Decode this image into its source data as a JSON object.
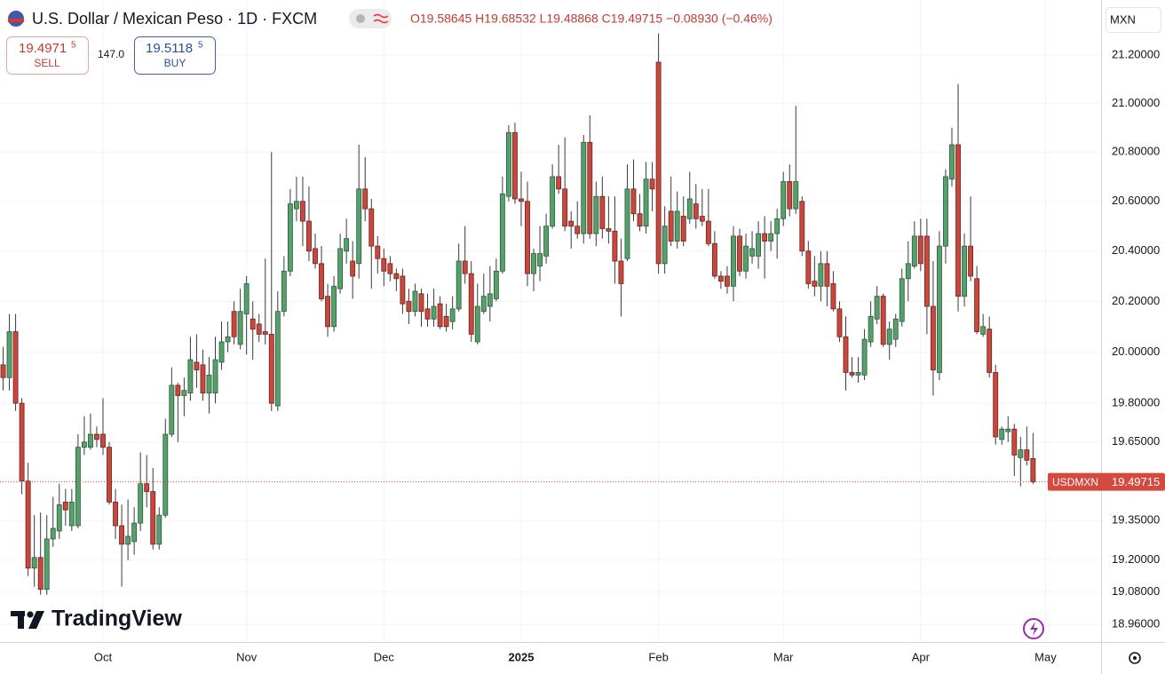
{
  "header": {
    "title": "U.S. Dollar / Mexican Peso · 1D · FXCM",
    "ohlc": "O19.58645 H19.68532 L19.48868 C19.49715 −0.08930 (−0.46%)",
    "sell": {
      "price": "19.4971",
      "pip": "5",
      "label": "SELL"
    },
    "spread": "147.0",
    "buy": {
      "price": "19.5118",
      "pip": "5",
      "label": "BUY"
    },
    "currency": "MXN",
    "logo": "TradingView"
  },
  "chart_data": {
    "type": "candlestick",
    "log_scale": true,
    "grid": true,
    "xlim": [
      -0.5,
      175.9
    ],
    "xticks": [
      {
        "value": 16,
        "label": "Oct"
      },
      {
        "value": 39,
        "label": "Nov"
      },
      {
        "value": 61,
        "label": "Dec"
      },
      {
        "value": 83,
        "label": "2025"
      },
      {
        "value": 105,
        "label": "Feb"
      },
      {
        "value": 125,
        "label": "Mar"
      },
      {
        "value": 147,
        "label": "Apr"
      },
      {
        "value": 167,
        "label": "May"
      }
    ],
    "ylim": [
      18.894,
      21.43
    ],
    "yticks": [
      {
        "value": 21.2,
        "label": "21.20000"
      },
      {
        "value": 21.0,
        "label": "21.00000"
      },
      {
        "value": 20.8,
        "label": "20.80000"
      },
      {
        "value": 20.6,
        "label": "20.60000"
      },
      {
        "value": 20.4,
        "label": "20.40000"
      },
      {
        "value": 20.2,
        "label": "20.20000"
      },
      {
        "value": 20.0,
        "label": "20.00000"
      },
      {
        "value": 19.8,
        "label": "19.80000"
      },
      {
        "value": 19.65,
        "label": "19.65000"
      },
      {
        "value": 19.35,
        "label": "19.35000"
      },
      {
        "value": 19.2,
        "label": "19.20000"
      },
      {
        "value": 19.08,
        "label": "19.08000"
      },
      {
        "value": 18.96,
        "label": "18.96000"
      }
    ],
    "up_color": "#56a06c",
    "down_color": "#c8483e",
    "last_price_color": "#d44a3f",
    "series": [
      {
        "name": "USDMXN",
        "open": [
          19.95,
          19.9,
          20.08,
          19.8,
          19.5,
          19.17,
          19.21,
          19.09,
          19.28,
          19.31,
          19.42,
          19.33,
          19.33,
          19.63,
          19.63,
          19.68,
          19.68,
          19.63,
          19.42,
          19.33,
          19.26,
          19.27,
          19.34,
          19.49,
          19.46,
          19.26,
          19.37,
          19.68,
          19.87,
          19.83,
          19.84,
          19.96,
          19.95,
          19.84,
          19.84,
          19.96,
          20.04,
          20.16,
          20.03,
          20.15,
          20.13,
          20.11,
          20.08,
          20.07,
          19.79,
          20.16,
          20.32,
          20.57,
          20.6,
          20.52,
          20.41,
          20.35,
          20.22,
          20.1,
          20.25,
          20.4,
          20.36,
          20.35,
          20.65,
          20.57,
          20.42,
          20.37,
          20.35,
          20.31,
          20.3,
          20.2,
          20.16,
          20.23,
          20.17,
          20.13,
          20.19,
          20.14,
          20.12,
          20.17,
          20.36,
          20.31,
          20.04,
          20.16,
          20.18,
          20.21,
          20.32,
          20.62,
          20.88,
          20.61,
          20.6,
          20.31,
          20.34,
          20.38,
          20.5,
          20.7,
          20.65,
          20.52,
          20.5,
          20.47,
          20.84,
          20.47,
          20.62,
          20.49,
          20.48,
          20.36,
          20.37,
          20.65,
          20.55,
          20.5,
          20.69,
          21.17,
          20.35,
          20.56,
          20.44,
          20.54,
          20.53,
          20.59,
          20.54,
          20.52,
          20.43,
          20.3,
          20.3,
          20.26,
          20.46,
          20.32,
          20.38,
          20.38,
          20.47,
          20.44,
          20.47,
          20.53,
          20.68,
          20.57,
          20.6,
          20.4,
          20.28,
          20.26,
          20.35,
          20.27,
          20.17,
          20.06,
          19.92,
          19.91,
          19.91,
          20.04,
          20.13,
          20.22,
          20.03,
          20.05,
          20.12,
          20.29,
          20.34,
          20.46,
          20.46,
          20.18,
          19.92,
          20.42,
          20.69,
          20.83,
          20.22,
          20.42,
          20.29,
          20.07,
          20.09,
          19.92,
          19.66,
          19.69,
          19.7,
          19.59,
          19.62,
          19.58645
        ],
        "high": [
          20.02,
          20.15,
          20.15,
          19.82,
          19.57,
          19.37,
          19.38,
          19.37,
          19.44,
          19.49,
          19.47,
          19.47,
          19.68,
          19.75,
          19.76,
          19.71,
          19.82,
          19.65,
          19.47,
          19.41,
          19.43,
          19.4,
          19.61,
          19.6,
          19.55,
          19.4,
          19.74,
          19.94,
          19.88,
          19.9,
          20.06,
          20.07,
          20.01,
          19.98,
          20.06,
          20.12,
          20.12,
          20.2,
          20.25,
          20.3,
          20.2,
          20.15,
          20.37,
          20.8,
          20.24,
          20.38,
          20.65,
          20.7,
          20.7,
          20.66,
          20.47,
          20.42,
          20.27,
          20.3,
          20.47,
          20.53,
          20.44,
          20.83,
          20.78,
          20.61,
          20.46,
          20.41,
          20.38,
          20.33,
          20.33,
          20.25,
          20.27,
          20.25,
          20.23,
          20.25,
          20.22,
          20.19,
          20.22,
          20.43,
          20.5,
          20.36,
          20.27,
          20.31,
          20.34,
          20.37,
          20.7,
          20.91,
          20.92,
          20.72,
          20.68,
          20.41,
          20.5,
          20.55,
          20.75,
          20.83,
          20.86,
          20.56,
          20.6,
          20.87,
          20.95,
          20.68,
          20.7,
          20.62,
          20.62,
          20.45,
          20.75,
          20.77,
          20.63,
          20.76,
          20.76,
          21.29,
          20.58,
          20.7,
          20.64,
          20.62,
          20.72,
          20.67,
          20.65,
          20.65,
          20.48,
          20.32,
          20.34,
          20.5,
          20.49,
          20.47,
          20.48,
          20.52,
          20.54,
          20.52,
          20.57,
          20.72,
          20.75,
          20.99,
          20.62,
          20.44,
          20.38,
          20.4,
          20.4,
          20.32,
          20.2,
          20.14,
          19.98,
          19.98,
          20.09,
          20.2,
          20.26,
          20.23,
          20.12,
          20.15,
          20.33,
          20.44,
          20.52,
          20.53,
          20.53,
          20.36,
          20.48,
          20.73,
          20.9,
          21.08,
          20.47,
          20.62,
          20.34,
          20.15,
          20.14,
          19.95,
          19.71,
          19.75,
          19.72,
          19.67,
          19.71,
          19.68532
        ],
        "low": [
          19.85,
          19.85,
          19.77,
          19.45,
          19.14,
          19.1,
          19.07,
          19.07,
          19.25,
          19.28,
          19.33,
          19.31,
          19.32,
          19.6,
          19.62,
          19.63,
          19.6,
          19.41,
          19.28,
          19.1,
          19.2,
          19.22,
          19.31,
          19.4,
          19.24,
          19.24,
          19.36,
          19.67,
          19.65,
          19.75,
          19.81,
          19.86,
          19.81,
          19.76,
          19.8,
          19.93,
          20.0,
          20.03,
          20.01,
          19.99,
          19.97,
          20.04,
          20.03,
          19.77,
          19.77,
          20.14,
          20.3,
          20.52,
          20.42,
          20.36,
          20.33,
          20.2,
          20.06,
          20.08,
          20.23,
          20.35,
          20.21,
          20.29,
          20.52,
          20.25,
          20.31,
          20.26,
          20.28,
          20.24,
          20.15,
          20.11,
          20.14,
          20.1,
          20.1,
          20.1,
          20.09,
          20.08,
          20.09,
          20.16,
          20.27,
          20.04,
          20.03,
          20.15,
          20.12,
          20.2,
          20.31,
          20.6,
          20.59,
          20.5,
          20.26,
          20.24,
          20.28,
          20.35,
          20.49,
          20.63,
          20.48,
          20.41,
          20.45,
          20.43,
          20.45,
          20.42,
          20.45,
          20.43,
          20.27,
          20.14,
          20.36,
          20.52,
          20.48,
          20.47,
          20.56,
          20.31,
          20.31,
          20.42,
          20.41,
          20.42,
          20.51,
          20.49,
          20.5,
          20.42,
          20.29,
          20.25,
          20.23,
          20.2,
          20.3,
          20.29,
          20.35,
          20.33,
          20.29,
          20.4,
          20.37,
          20.5,
          20.54,
          20.55,
          20.38,
          20.25,
          20.22,
          20.2,
          20.18,
          20.16,
          20.04,
          19.85,
          19.9,
          19.88,
          19.89,
          20.02,
          20.11,
          20.02,
          19.97,
          20.02,
          20.1,
          20.2,
          20.33,
          20.32,
          20.07,
          19.83,
          19.89,
          20.35,
          20.66,
          20.16,
          20.18,
          20.28,
          20.07,
          20.06,
          19.9,
          19.64,
          19.64,
          19.65,
          19.52,
          19.48,
          19.56,
          19.48868
        ],
        "close": [
          19.9,
          20.08,
          19.8,
          19.5,
          19.17,
          19.21,
          19.09,
          19.28,
          19.32,
          19.41,
          19.39,
          19.42,
          19.63,
          19.65,
          19.68,
          19.66,
          19.63,
          19.42,
          19.33,
          19.26,
          19.29,
          19.34,
          19.49,
          19.46,
          19.26,
          19.37,
          19.68,
          19.87,
          19.83,
          19.85,
          19.97,
          19.93,
          19.84,
          19.91,
          19.97,
          20.04,
          20.06,
          20.06,
          20.16,
          20.27,
          20.09,
          20.07,
          20.07,
          19.8,
          20.16,
          20.32,
          20.59,
          20.6,
          20.52,
          20.4,
          20.35,
          20.21,
          20.1,
          20.26,
          20.41,
          20.45,
          20.3,
          20.65,
          20.57,
          20.42,
          20.37,
          20.32,
          20.31,
          20.29,
          20.19,
          20.16,
          20.24,
          20.16,
          20.13,
          20.18,
          20.1,
          20.1,
          20.17,
          20.36,
          20.31,
          20.07,
          20.18,
          20.22,
          20.23,
          20.32,
          20.63,
          20.88,
          20.61,
          20.6,
          20.31,
          20.39,
          20.39,
          20.5,
          20.7,
          20.65,
          20.5,
          20.5,
          20.47,
          20.84,
          20.47,
          20.62,
          20.49,
          20.48,
          20.36,
          20.27,
          20.65,
          20.55,
          20.5,
          20.69,
          20.65,
          20.35,
          20.5,
          20.44,
          20.56,
          20.44,
          20.61,
          20.53,
          20.52,
          20.43,
          20.3,
          20.28,
          20.26,
          20.46,
          20.32,
          20.42,
          20.41,
          20.47,
          20.44,
          20.47,
          20.53,
          20.68,
          20.57,
          20.68,
          20.4,
          20.27,
          20.26,
          20.35,
          20.26,
          20.17,
          20.06,
          19.92,
          19.91,
          19.92,
          20.05,
          20.14,
          20.22,
          20.03,
          20.09,
          20.13,
          20.29,
          20.35,
          20.46,
          20.35,
          20.18,
          19.93,
          20.42,
          20.7,
          20.83,
          20.22,
          20.42,
          20.3,
          20.08,
          20.1,
          19.92,
          19.67,
          19.7,
          19.7,
          19.6,
          19.62,
          19.58,
          19.49715
        ]
      }
    ]
  }
}
